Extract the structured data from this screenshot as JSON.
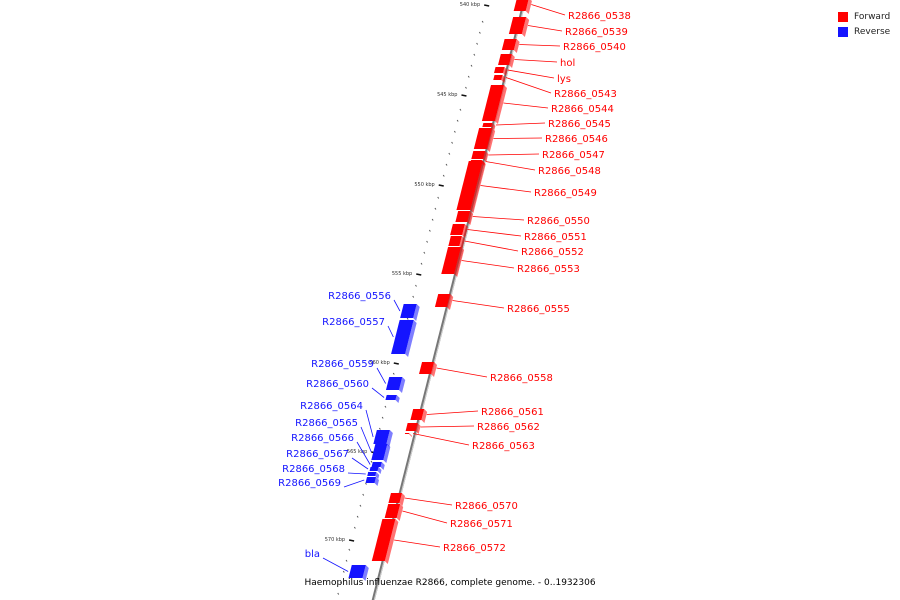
{
  "legend": {
    "forward_label": "Forward",
    "reverse_label": "Reverse",
    "forward_color": "#ff0000",
    "reverse_color": "#1414ff"
  },
  "caption": "Haemophilus influenzae R2866, complete genome. - 0..1932306",
  "kbp_ticks": [
    "540 kbp",
    "545 kbp",
    "550 kbp",
    "555 kbp",
    "560 kbp",
    "565 kbp",
    "570 kbp"
  ],
  "forward_genes": [
    "R2866_0538",
    "R2866_0539",
    "R2866_0540",
    "hol",
    "lys",
    "R2866_0543",
    "R2866_0544",
    "R2866_0545",
    "R2866_0546",
    "R2866_0547",
    "R2866_0548",
    "R2866_0549",
    "R2866_0550",
    "R2866_0551",
    "R2866_0552",
    "R2866_0553",
    "R2866_0555",
    "R2866_0558",
    "R2866_0561",
    "R2866_0562",
    "R2866_0563",
    "R2866_0570",
    "R2866_0571",
    "R2866_0572"
  ],
  "reverse_genes": [
    "R2866_0556",
    "R2866_0557",
    "R2866_0559",
    "R2866_0560",
    "R2866_0564",
    "R2866_0565",
    "R2866_0566",
    "R2866_0567",
    "R2866_0568",
    "R2866_0569",
    "bla"
  ]
}
